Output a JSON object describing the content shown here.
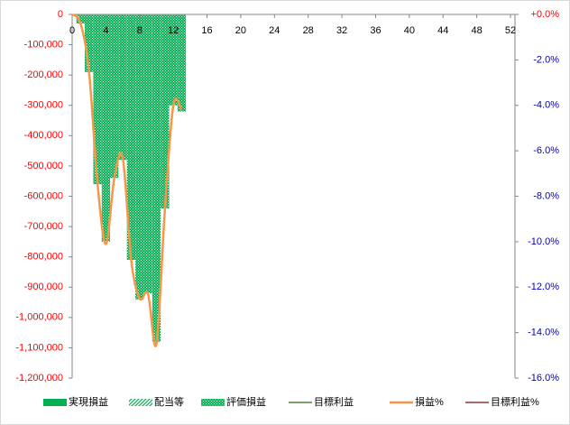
{
  "chart_data": {
    "type": "bar",
    "x": [
      0,
      1,
      2,
      3,
      4,
      5,
      6,
      7,
      8,
      9,
      10,
      11,
      12,
      13
    ],
    "xlim": [
      0,
      52
    ],
    "xticks": [
      0,
      4,
      8,
      12,
      16,
      20,
      24,
      28,
      32,
      36,
      40,
      44,
      48,
      52
    ],
    "ylim": [
      -1200000,
      0
    ],
    "yticks": [
      {
        "value": 0,
        "label": "0"
      },
      {
        "value": -100000,
        "label": "-100,000"
      },
      {
        "value": -200000,
        "label": "-200,000"
      },
      {
        "value": -300000,
        "label": "-300,000"
      },
      {
        "value": -400000,
        "label": "-400,000"
      },
      {
        "value": -500000,
        "label": "-500,000"
      },
      {
        "value": -600000,
        "label": "-600,000"
      },
      {
        "value": -700000,
        "label": "-700,000"
      },
      {
        "value": -800000,
        "label": "-800,000"
      },
      {
        "value": -900000,
        "label": "-900,000"
      },
      {
        "value": -1000000,
        "label": "-1,000,000"
      },
      {
        "value": -1100000,
        "label": "-1,100,000"
      },
      {
        "value": -1200000,
        "label": "-1,200,000"
      }
    ],
    "y2lim": [
      -16,
      0
    ],
    "y2ticks": [
      {
        "value": 0,
        "label": "+0.0%"
      },
      {
        "value": -2,
        "label": "-2.0%"
      },
      {
        "value": -4,
        "label": "-4.0%"
      },
      {
        "value": -6,
        "label": "-6.0%"
      },
      {
        "value": -8,
        "label": "-8.0%"
      },
      {
        "value": -10,
        "label": "-10.0%"
      },
      {
        "value": -12,
        "label": "-12.0%"
      },
      {
        "value": -14,
        "label": "-14.0%"
      },
      {
        "value": -16,
        "label": "-16.0%"
      }
    ],
    "series": [
      {
        "name": "実現損益",
        "color": "#00b050",
        "style": "solid",
        "values": [
          null,
          null,
          null,
          null,
          null,
          null,
          null,
          null,
          null,
          null,
          null,
          null,
          null,
          null
        ]
      },
      {
        "name": "配当等",
        "color": "#00b050",
        "style": "hatch",
        "values": [
          null,
          null,
          null,
          null,
          null,
          null,
          null,
          null,
          null,
          null,
          null,
          null,
          null,
          null
        ]
      },
      {
        "name": "評価損益",
        "color": "#00b050",
        "style": "dots",
        "values": [
          null,
          -30000,
          -190000,
          -560000,
          -750000,
          -540000,
          -480000,
          -810000,
          -940000,
          -920000,
          -1080000,
          -640000,
          -300000,
          -320000
        ]
      },
      {
        "name": "目標利益",
        "color": "#548235",
        "style": "line",
        "values": [
          null,
          null,
          null,
          null,
          null,
          null,
          null,
          null,
          null,
          null,
          null,
          null,
          null,
          null
        ]
      },
      {
        "name": "損益%",
        "color": "#f79646",
        "style": "line",
        "axis": "y2",
        "values": [
          0,
          -0.4,
          -2.5,
          -7.4,
          -10.1,
          -7.2,
          -6.3,
          -10.8,
          -12.5,
          -12.3,
          -14.5,
          -8.6,
          -4.0,
          -4.2
        ]
      },
      {
        "name": "目標利益%",
        "color": "#943634",
        "style": "line",
        "axis": "y2",
        "values": [
          null,
          null,
          null,
          null,
          null,
          null,
          null,
          null,
          null,
          null,
          null,
          null,
          null,
          null
        ]
      }
    ]
  }
}
